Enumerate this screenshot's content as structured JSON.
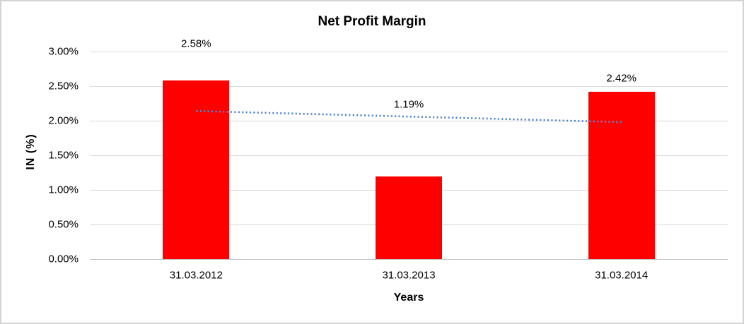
{
  "chart_data": {
    "type": "bar",
    "title": "Net Profit Margin",
    "xlabel": "Years",
    "ylabel": "IN (%)",
    "categories": [
      "31.03.2012",
      "31.03.2013",
      "31.03.2014"
    ],
    "values": [
      2.58,
      1.19,
      2.42
    ],
    "data_labels": [
      "2.58%",
      "1.19%",
      "2.42%"
    ],
    "ylim": [
      0,
      3
    ],
    "ytick_step": 0.5,
    "ytick_labels": [
      "0.00%",
      "0.50%",
      "1.00%",
      "1.50%",
      "2.00%",
      "2.50%",
      "3.00%"
    ],
    "grid": true,
    "legend": "none",
    "bar_color": "#ff0000",
    "gridline_color": "#d9d9d9",
    "axis_line_color": "#bfbfbf",
    "trendline": {
      "type": "linear",
      "style": "dotted",
      "color": "#5587c8",
      "start_value": 2.14,
      "end_value": 1.98
    }
  },
  "frame": {
    "border_color": "#d3d3d3",
    "background_color": "#ffffff"
  }
}
